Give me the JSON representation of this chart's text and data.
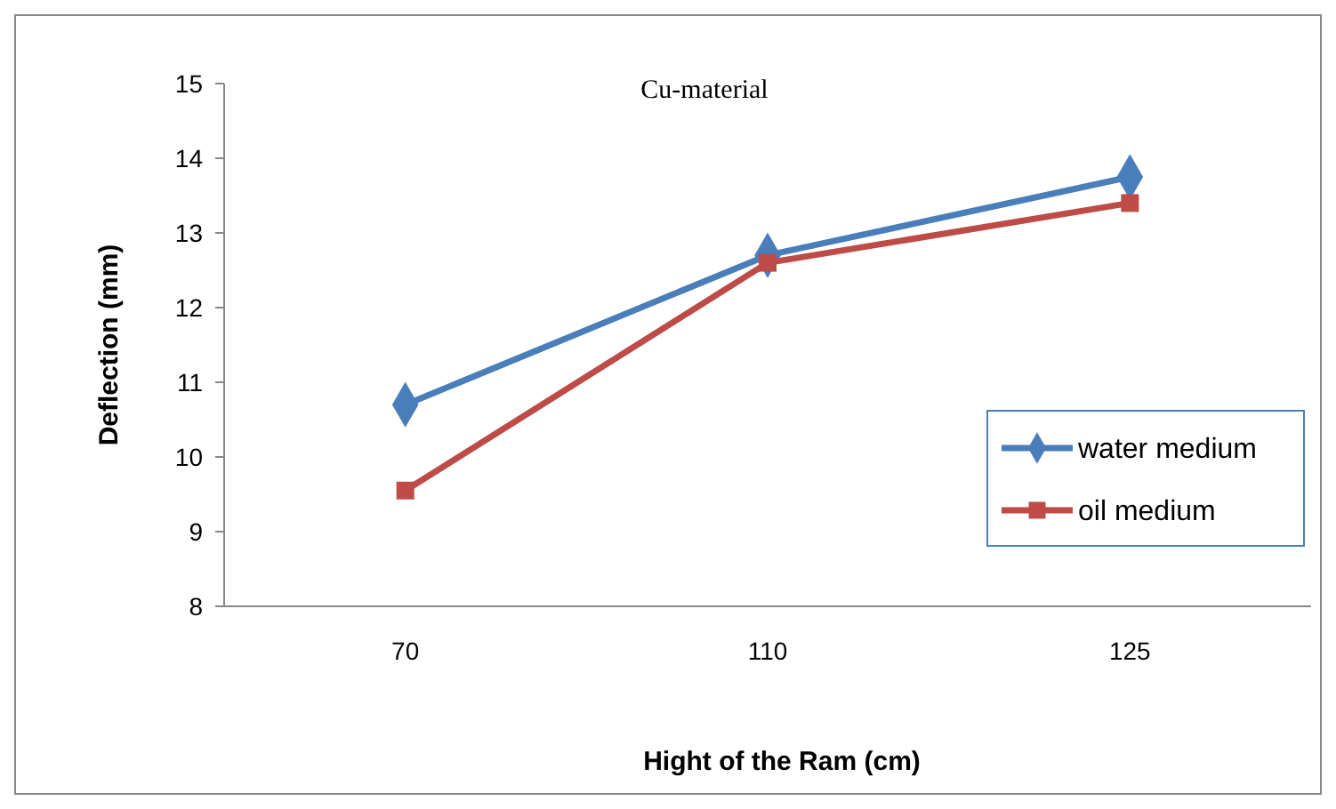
{
  "chart_data": {
    "type": "line",
    "title": "Cu-material",
    "xlabel": "Hight of the Ram (cm)",
    "ylabel": "Deflection (mm)",
    "categories": [
      "70",
      "110",
      "125"
    ],
    "series": [
      {
        "name": "water medium",
        "color": "#4a7ebb",
        "values": [
          10.7,
          12.7,
          13.75
        ],
        "marker": "diamond"
      },
      {
        "name": "oil medium",
        "color": "#be4b48",
        "values": [
          9.55,
          12.6,
          13.4
        ],
        "marker": "square"
      }
    ],
    "ylim": [
      8,
      15
    ],
    "yticks": [
      8,
      9,
      10,
      11,
      12,
      13,
      14,
      15
    ],
    "grid": false,
    "legend": "right"
  }
}
